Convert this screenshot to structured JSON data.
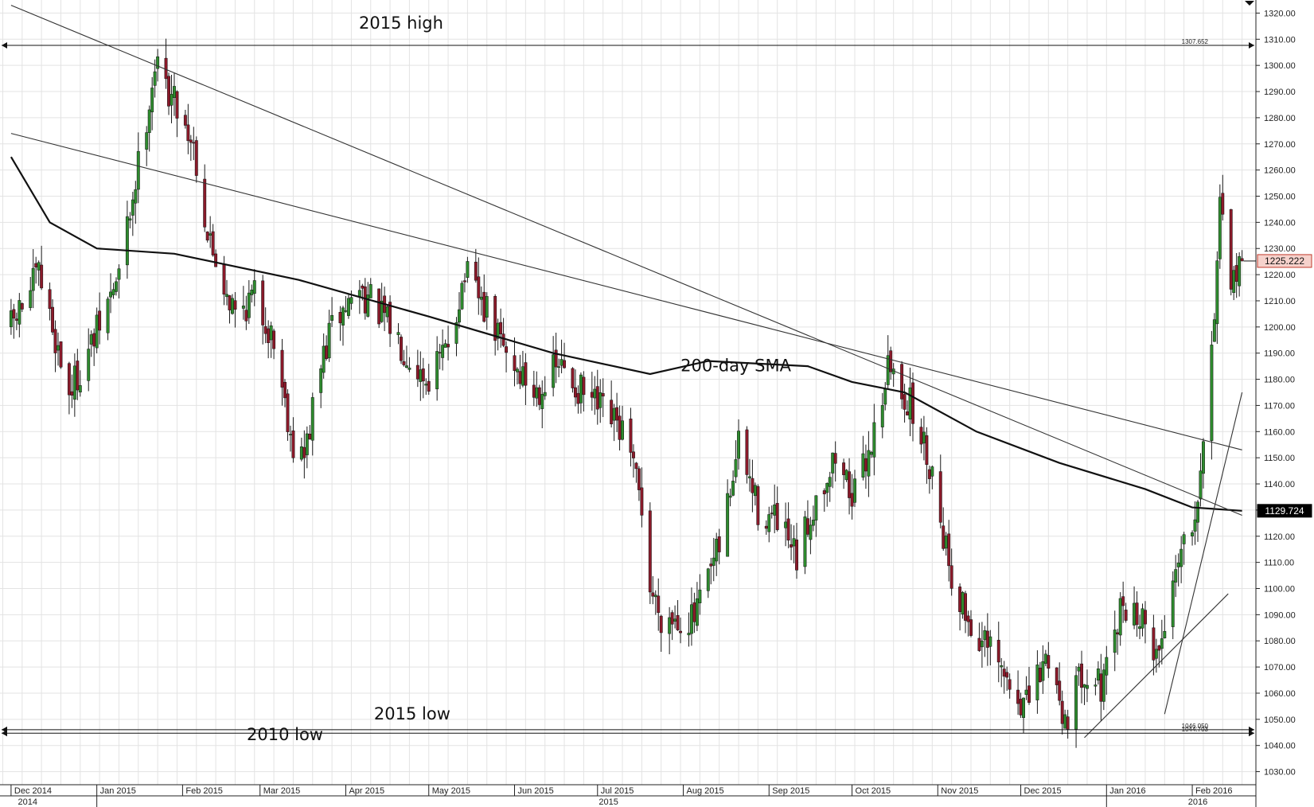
{
  "chart_data": {
    "type": "candlestick",
    "title": "",
    "xlabel": "",
    "ylabel": "",
    "grid": true,
    "ylim": [
      1025,
      1325
    ],
    "yticks": [
      1030,
      1040,
      1050,
      1060,
      1070,
      1080,
      1090,
      1100,
      1110,
      1120,
      1130,
      1140,
      1150,
      1160,
      1170,
      1180,
      1190,
      1200,
      1210,
      1220,
      1230,
      1240,
      1250,
      1260,
      1270,
      1280,
      1290,
      1300,
      1310,
      1320
    ],
    "ytick_labels": [
      "1030.00",
      "1040.00",
      "1050.00",
      "1060.00",
      "1070.00",
      "1080.00",
      "1090.00",
      "1100.00",
      "1110.00",
      "1120.00",
      "1130.00",
      "1140.00",
      "1150.00",
      "1160.00",
      "1170.00",
      "1180.00",
      "1190.00",
      "1200.00",
      "1210.00",
      "1220.00",
      "1230.00",
      "1240.00",
      "1250.00",
      "1260.00",
      "1270.00",
      "1280.00",
      "1290.00",
      "1300.00",
      "1310.00",
      "1320.00"
    ],
    "months": [
      "Dec 2014",
      "Jan 2015",
      "Feb 2015",
      "Mar 2015",
      "Apr 2015",
      "May 2015",
      "Jun 2015",
      "Jul 2015",
      "Aug 2015",
      "Sep 2015",
      "Oct 2015",
      "Nov 2015",
      "Dec 2015",
      "Jan 2016",
      "Feb 2016"
    ],
    "years": [
      "2014",
      "2015",
      "2016"
    ],
    "anchors": [
      {
        "date": "2014-12-01",
        "close": 1200
      },
      {
        "date": "2014-12-11",
        "close": 1220
      },
      {
        "date": "2014-12-22",
        "close": 1175
      },
      {
        "date": "2014-12-31",
        "close": 1195
      },
      {
        "date": "2015-01-09",
        "close": 1220
      },
      {
        "date": "2015-01-16",
        "close": 1262
      },
      {
        "date": "2015-01-22",
        "close": 1300
      },
      {
        "date": "2015-01-30",
        "close": 1285
      },
      {
        "date": "2015-02-05",
        "close": 1270
      },
      {
        "date": "2015-02-10",
        "close": 1235
      },
      {
        "date": "2015-02-20",
        "close": 1205
      },
      {
        "date": "2015-02-27",
        "close": 1212
      },
      {
        "date": "2015-03-06",
        "close": 1195
      },
      {
        "date": "2015-03-13",
        "close": 1155
      },
      {
        "date": "2015-03-17",
        "close": 1150
      },
      {
        "date": "2015-03-23",
        "close": 1185
      },
      {
        "date": "2015-03-27",
        "close": 1200
      },
      {
        "date": "2015-04-06",
        "close": 1215
      },
      {
        "date": "2015-04-17",
        "close": 1200
      },
      {
        "date": "2015-04-30",
        "close": 1180
      },
      {
        "date": "2015-05-07",
        "close": 1190
      },
      {
        "date": "2015-05-14",
        "close": 1220
      },
      {
        "date": "2015-05-22",
        "close": 1205
      },
      {
        "date": "2015-05-29",
        "close": 1190
      },
      {
        "date": "2015-06-08",
        "close": 1175
      },
      {
        "date": "2015-06-17",
        "close": 1185
      },
      {
        "date": "2015-06-25",
        "close": 1175
      },
      {
        "date": "2015-07-02",
        "close": 1168
      },
      {
        "date": "2015-07-10",
        "close": 1160
      },
      {
        "date": "2015-07-17",
        "close": 1132
      },
      {
        "date": "2015-07-20",
        "close": 1100
      },
      {
        "date": "2015-07-24",
        "close": 1090
      },
      {
        "date": "2015-08-05",
        "close": 1088
      },
      {
        "date": "2015-08-14",
        "close": 1115
      },
      {
        "date": "2015-08-21",
        "close": 1155
      },
      {
        "date": "2015-08-28",
        "close": 1130
      },
      {
        "date": "2015-09-04",
        "close": 1125
      },
      {
        "date": "2015-09-11",
        "close": 1110
      },
      {
        "date": "2015-09-18",
        "close": 1135
      },
      {
        "date": "2015-09-25",
        "close": 1150
      },
      {
        "date": "2015-10-02",
        "close": 1135
      },
      {
        "date": "2015-10-09",
        "close": 1160
      },
      {
        "date": "2015-10-14",
        "close": 1185
      },
      {
        "date": "2015-10-22",
        "close": 1170
      },
      {
        "date": "2015-10-30",
        "close": 1145
      },
      {
        "date": "2015-11-06",
        "close": 1105
      },
      {
        "date": "2015-11-13",
        "close": 1085
      },
      {
        "date": "2015-11-20",
        "close": 1075
      },
      {
        "date": "2015-11-27",
        "close": 1062
      },
      {
        "date": "2015-12-03",
        "close": 1055
      },
      {
        "date": "2015-12-11",
        "close": 1075
      },
      {
        "date": "2015-12-17",
        "close": 1050
      },
      {
        "date": "2015-12-24",
        "close": 1070
      },
      {
        "date": "2015-12-31",
        "close": 1062
      },
      {
        "date": "2016-01-07",
        "close": 1095
      },
      {
        "date": "2016-01-12",
        "close": 1090
      },
      {
        "date": "2016-01-20",
        "close": 1075
      },
      {
        "date": "2016-01-27",
        "close": 1115
      },
      {
        "date": "2016-02-02",
        "close": 1130
      },
      {
        "date": "2016-02-05",
        "close": 1160
      },
      {
        "date": "2016-02-08",
        "close": 1190
      },
      {
        "date": "2016-02-11",
        "close": 1245
      },
      {
        "date": "2016-02-15",
        "close": 1210
      },
      {
        "date": "2016-02-18",
        "close": 1230
      },
      {
        "date": "2016-02-19",
        "close": 1225
      }
    ],
    "sma_200": [
      {
        "date": "2014-12-01",
        "value": 1265
      },
      {
        "date": "2014-12-15",
        "value": 1240
      },
      {
        "date": "2015-01-01",
        "value": 1230
      },
      {
        "date": "2015-01-29",
        "value": 1228
      },
      {
        "date": "2015-03-15",
        "value": 1218
      },
      {
        "date": "2015-05-01",
        "value": 1204
      },
      {
        "date": "2015-06-15",
        "value": 1190
      },
      {
        "date": "2015-07-20",
        "value": 1182
      },
      {
        "date": "2015-08-10",
        "value": 1187
      },
      {
        "date": "2015-09-15",
        "value": 1185
      },
      {
        "date": "2015-10-01",
        "value": 1179
      },
      {
        "date": "2015-10-20",
        "value": 1175
      },
      {
        "date": "2015-11-15",
        "value": 1160
      },
      {
        "date": "2015-12-15",
        "value": 1148
      },
      {
        "date": "2016-01-15",
        "value": 1138
      },
      {
        "date": "2016-02-01",
        "value": 1131
      },
      {
        "date": "2016-02-19",
        "value": 1129.724
      }
    ],
    "trendlines": [
      {
        "from": {
          "date": "2014-12-01",
          "value": 1323
        },
        "to": {
          "date": "2016-02-19",
          "value": 1128
        }
      },
      {
        "from": {
          "date": "2014-12-01",
          "value": 1274
        },
        "to": {
          "date": "2016-02-19",
          "value": 1153
        }
      },
      {
        "from": {
          "date": "2016-01-22",
          "value": 1052
        },
        "to": {
          "date": "2016-02-19",
          "value": 1175
        }
      },
      {
        "from": {
          "date": "2015-12-24",
          "value": 1043
        },
        "to": {
          "date": "2016-02-14",
          "value": 1098
        }
      }
    ],
    "hlines": [
      {
        "value": 1307.652,
        "label": "1307.652"
      },
      {
        "value": 1046.05,
        "label": "1046.050"
      },
      {
        "value": 1044.703,
        "label": "1044.703"
      }
    ],
    "annotations": [
      {
        "text": "2015 high",
        "date": "2015-04-21",
        "value": 1314
      },
      {
        "text": "200-day SMA",
        "date": "2015-08-20",
        "value": 1183
      },
      {
        "text": "2015 low",
        "date": "2015-04-25",
        "value": 1050
      },
      {
        "text": "2010 low",
        "date": "2015-03-10",
        "value": 1042
      }
    ],
    "price_labels": [
      {
        "value": 1225.222,
        "label": "1225.222",
        "style": "last-price"
      },
      {
        "value": 1129.724,
        "label": "1129.724",
        "style": "sma"
      }
    ],
    "colors": {
      "bull": "#2e8b2e",
      "bear": "#8b1a2a",
      "sma": "#111111",
      "trend": "#333333",
      "grid": "#e3e3e3",
      "last_price_bg": "#f6d2cc",
      "last_price_border": "#c0392b",
      "sma_label_bg": "#000000"
    }
  }
}
